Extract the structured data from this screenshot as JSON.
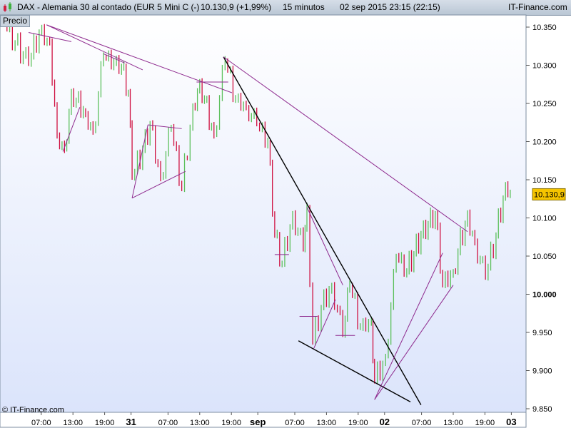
{
  "header": {
    "title": "DAX - Alemania 30 al contado (EUR 5 Mini C (-)",
    "price_change": "10.130,9 (+1,99%)",
    "interval": "15 minutos",
    "datetime": "02 sep 2015 23:15 (22:15)",
    "brand": "IT-Finance.com"
  },
  "panel_label": "Precio",
  "copyright": "© IT-Finance.com",
  "colors": {
    "up": "#5cc05c",
    "down": "#cf1040",
    "trendline": "#8e2a8e",
    "black_line": "#000000",
    "last_price_bg": "#f5c400"
  },
  "chart_data": {
    "type": "candlestick",
    "title": "",
    "ylim": [
      9850,
      10350
    ],
    "y_ticks": [
      9850,
      9900,
      9950,
      10000,
      10050,
      10100,
      10150,
      10200,
      10250,
      10300,
      10350
    ],
    "y_tick_labels": [
      "9.850",
      "9.900",
      "9.950",
      "10.000",
      "10.050",
      "10.100",
      "10.150",
      "10.200",
      "10.250",
      "10.300",
      "10.350"
    ],
    "x_unit": "hours since 30 aug 00:00",
    "x_ticks": [
      {
        "h": 7,
        "label": "07:00",
        "bold": false
      },
      {
        "h": 13,
        "label": "13:00",
        "bold": false
      },
      {
        "h": 19,
        "label": "19:00",
        "bold": false
      },
      {
        "h": 24,
        "label": "31",
        "bold": true
      },
      {
        "h": 31,
        "label": "07:00",
        "bold": false
      },
      {
        "h": 37,
        "label": "13:00",
        "bold": false
      },
      {
        "h": 43,
        "label": "19:00",
        "bold": false
      },
      {
        "h": 48,
        "label": "sep",
        "bold": true
      },
      {
        "h": 55,
        "label": "07:00",
        "bold": false
      },
      {
        "h": 61,
        "label": "13:00",
        "bold": false
      },
      {
        "h": 67,
        "label": "19:00",
        "bold": false
      },
      {
        "h": 72,
        "label": "02",
        "bold": true
      },
      {
        "h": 79,
        "label": "07:00",
        "bold": false
      },
      {
        "h": 85,
        "label": "13:00",
        "bold": false
      },
      {
        "h": 91,
        "label": "19:00",
        "bold": false
      },
      {
        "h": 96,
        "label": "03",
        "bold": true
      }
    ],
    "last_price": 10130.9,
    "last_price_label": "10.130,9",
    "price_path": [
      [
        0,
        10353
      ],
      [
        4.6,
        10301
      ],
      [
        6.6,
        10343
      ],
      [
        8.6,
        10330
      ],
      [
        10,
        10208
      ],
      [
        11.4,
        10189
      ],
      [
        12.7,
        10264
      ],
      [
        15.4,
        10236
      ],
      [
        16.8,
        10213
      ],
      [
        18.8,
        10311
      ],
      [
        22.2,
        10297
      ],
      [
        23.5,
        10264
      ],
      [
        24.2,
        10152
      ],
      [
        26.2,
        10189
      ],
      [
        27.6,
        10222
      ],
      [
        29.6,
        10152
      ],
      [
        31.6,
        10217
      ],
      [
        33.6,
        10138
      ],
      [
        35.7,
        10245
      ],
      [
        37,
        10278
      ],
      [
        39.7,
        10208
      ],
      [
        41.8,
        10306
      ],
      [
        43.8,
        10255
      ],
      [
        45.8,
        10245
      ],
      [
        47.8,
        10222
      ],
      [
        49.9,
        10199
      ],
      [
        51.2,
        10077
      ],
      [
        52.6,
        10040
      ],
      [
        54.6,
        10105
      ],
      [
        56.6,
        10058
      ],
      [
        57.3,
        10114
      ],
      [
        58.4,
        9937
      ],
      [
        60,
        9983
      ],
      [
        62,
        10012
      ],
      [
        64.1,
        9946
      ],
      [
        65.4,
        10012
      ],
      [
        67.4,
        9956
      ],
      [
        69.5,
        9965
      ],
      [
        70.1,
        9886
      ],
      [
        72.2,
        9918
      ],
      [
        74.2,
        10049
      ],
      [
        76.2,
        10030
      ],
      [
        78.9,
        10077
      ],
      [
        81.6,
        10105
      ],
      [
        83,
        10012
      ],
      [
        85,
        10030
      ],
      [
        87.7,
        10105
      ],
      [
        89.1,
        10068
      ],
      [
        91.1,
        10021
      ],
      [
        93.1,
        10077
      ],
      [
        94.9,
        10143
      ],
      [
        95.8,
        10131
      ]
    ],
    "trendlines": [
      {
        "color": "black",
        "from": [
          41.5,
          10311
        ],
        "to": [
          78.9,
          9855
        ]
      },
      {
        "color": "black",
        "from": [
          55.7,
          9939
        ],
        "to": [
          76.9,
          9859
        ]
      },
      {
        "color": "purple",
        "from": [
          41.5,
          10311
        ],
        "to": [
          87.7,
          10082
        ]
      },
      {
        "color": "purple",
        "from": [
          8,
          10353
        ],
        "to": [
          43.1,
          10264
        ]
      },
      {
        "color": "purple",
        "from": [
          8,
          10353
        ],
        "to": [
          26.2,
          10294
        ]
      },
      {
        "color": "purple",
        "from": [
          4.6,
          10343
        ],
        "to": [
          12.7,
          10331
        ]
      },
      {
        "color": "purple",
        "from": [
          18.8,
          10315
        ],
        "to": [
          22.8,
          10303
        ]
      },
      {
        "color": "purple",
        "from": [
          11.1,
          10187
        ],
        "to": [
          14.3,
          10245
        ]
      },
      {
        "color": "purple",
        "from": [
          24.2,
          10126
        ],
        "to": [
          34.3,
          10161
        ]
      },
      {
        "color": "purple",
        "from": [
          24.2,
          10126
        ],
        "to": [
          27.2,
          10222
        ]
      },
      {
        "color": "purple",
        "from": [
          27.2,
          10222
        ],
        "to": [
          33.6,
          10217
        ]
      },
      {
        "color": "purple",
        "from": [
          57.3,
          10114
        ],
        "to": [
          64.1,
          10012
        ]
      },
      {
        "color": "purple",
        "from": [
          58.6,
          9929
        ],
        "to": [
          62.7,
          9993
        ]
      },
      {
        "color": "purple",
        "from": [
          70.1,
          9862
        ],
        "to": [
          83,
          10054
        ]
      },
      {
        "color": "purple",
        "from": [
          70.1,
          9862
        ],
        "to": [
          85,
          10012
        ]
      },
      {
        "color": "purple",
        "from": [
          51.2,
          10052
        ],
        "to": [
          53.9,
          10052
        ]
      },
      {
        "color": "purple",
        "from": [
          55.9,
          9971
        ],
        "to": [
          59.3,
          9971
        ]
      },
      {
        "color": "purple",
        "from": [
          62.7,
          9946
        ],
        "to": [
          66.4,
          9946
        ]
      },
      {
        "color": "purple",
        "from": [
          36.4,
          10278
        ],
        "to": [
          42.4,
          10278
        ]
      }
    ]
  }
}
